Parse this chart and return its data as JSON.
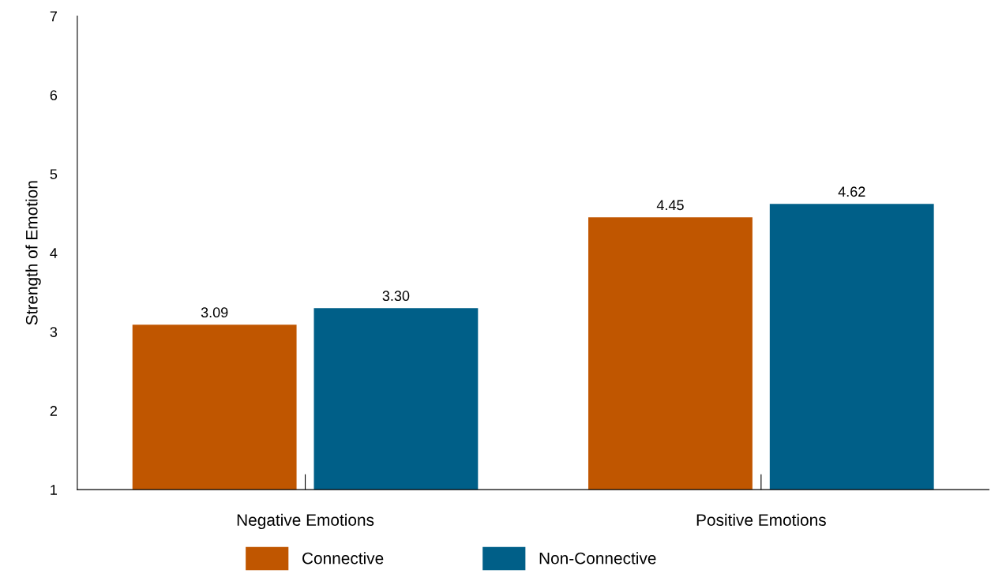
{
  "chart_data": {
    "type": "bar",
    "ylabel": "Strength of Emotion",
    "categories": [
      "Negative Emotions",
      "Positive Emotions"
    ],
    "series": [
      {
        "name": "Connective",
        "color": "#c05600",
        "values": [
          3.09,
          4.45
        ]
      },
      {
        "name": "Non-Connective",
        "color": "#005f88",
        "values": [
          3.3,
          4.62
        ]
      }
    ],
    "ylim": [
      1,
      7
    ],
    "yticks": [
      1,
      2,
      3,
      4,
      5,
      6,
      7
    ],
    "grid": false,
    "legend": "bottom",
    "value_labels": [
      [
        "3.09",
        "4.45"
      ],
      [
        "3.30",
        "4.62"
      ]
    ]
  }
}
